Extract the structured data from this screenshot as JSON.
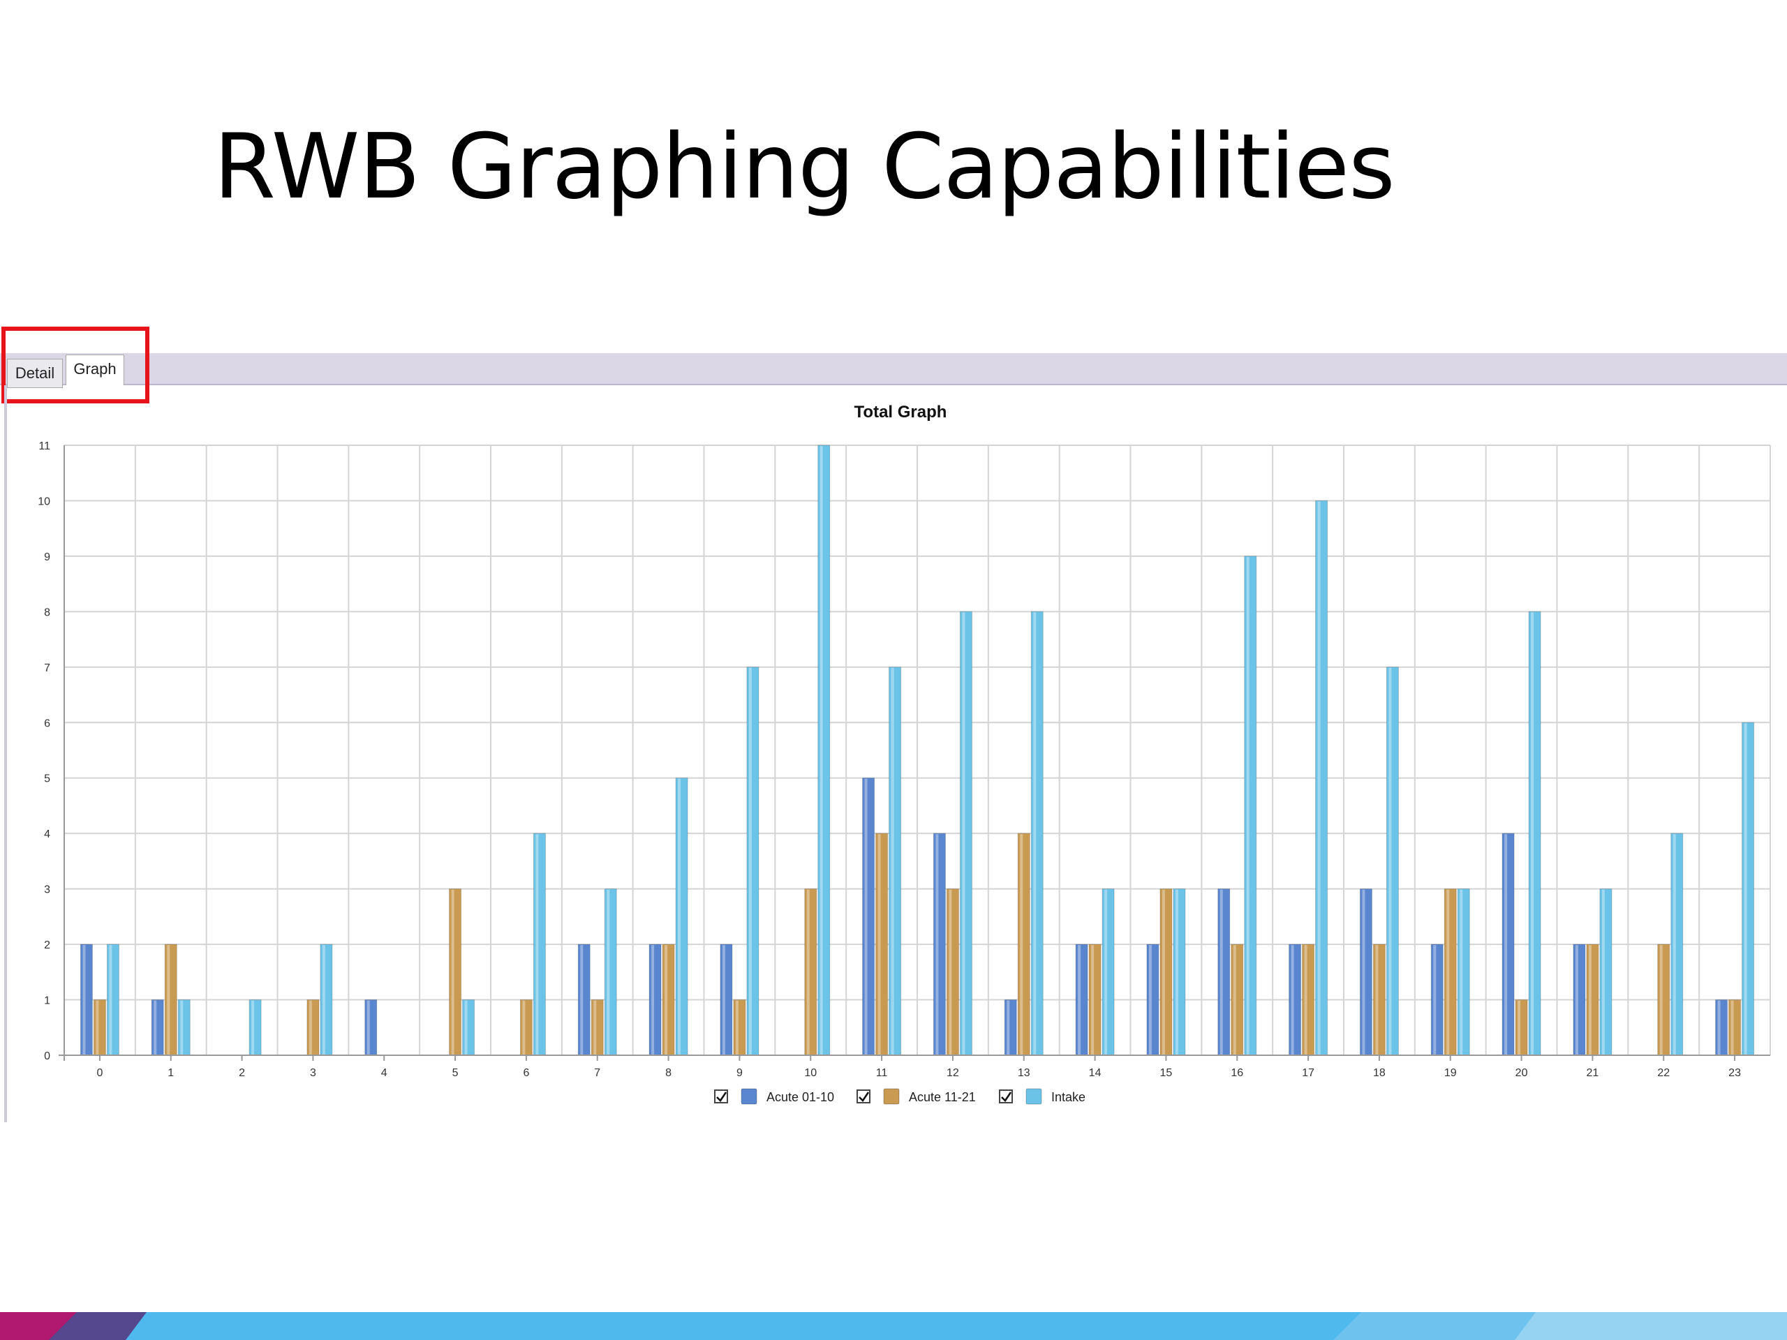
{
  "slide": {
    "title": "RWB Graphing Capabilities"
  },
  "tabs": [
    {
      "label": "Detail",
      "selected": false
    },
    {
      "label": "Graph",
      "selected": true
    }
  ],
  "colors": {
    "acute_01_10": "#5a86cf",
    "acute_11_21": "#c99a52",
    "intake": "#6cc3e8",
    "highlight": "#e8141b"
  },
  "chart_data": {
    "type": "bar",
    "title": "Total Graph",
    "xlabel": "",
    "ylabel": "",
    "ylim": [
      0,
      11
    ],
    "yticks": [
      0,
      1,
      2,
      3,
      4,
      5,
      6,
      7,
      8,
      9,
      10,
      11
    ],
    "grid": true,
    "legend": "bottom-center",
    "categories": [
      "0",
      "1",
      "2",
      "3",
      "4",
      "5",
      "6",
      "7",
      "8",
      "9",
      "10",
      "11",
      "12",
      "13",
      "14",
      "15",
      "16",
      "17",
      "18",
      "19",
      "20",
      "21",
      "22",
      "23"
    ],
    "series": [
      {
        "name": "Acute 01-10",
        "color": "#5a86cf",
        "checked": true,
        "values": [
          2,
          1,
          0,
          0,
          1,
          0,
          0,
          2,
          2,
          2,
          0,
          5,
          4,
          1,
          2,
          2,
          3,
          2,
          3,
          2,
          4,
          2,
          0,
          1
        ]
      },
      {
        "name": "Acute 11-21",
        "color": "#c99a52",
        "checked": true,
        "values": [
          1,
          2,
          0,
          1,
          0,
          3,
          1,
          1,
          2,
          1,
          3,
          4,
          3,
          4,
          2,
          3,
          2,
          2,
          2,
          3,
          1,
          2,
          2,
          1
        ]
      },
      {
        "name": "Intake",
        "color": "#6cc3e8",
        "checked": true,
        "values": [
          2,
          1,
          1,
          2,
          0,
          1,
          4,
          3,
          5,
          7,
          11,
          7,
          8,
          8,
          3,
          3,
          9,
          10,
          7,
          3,
          8,
          3,
          4,
          6
        ]
      }
    ]
  }
}
